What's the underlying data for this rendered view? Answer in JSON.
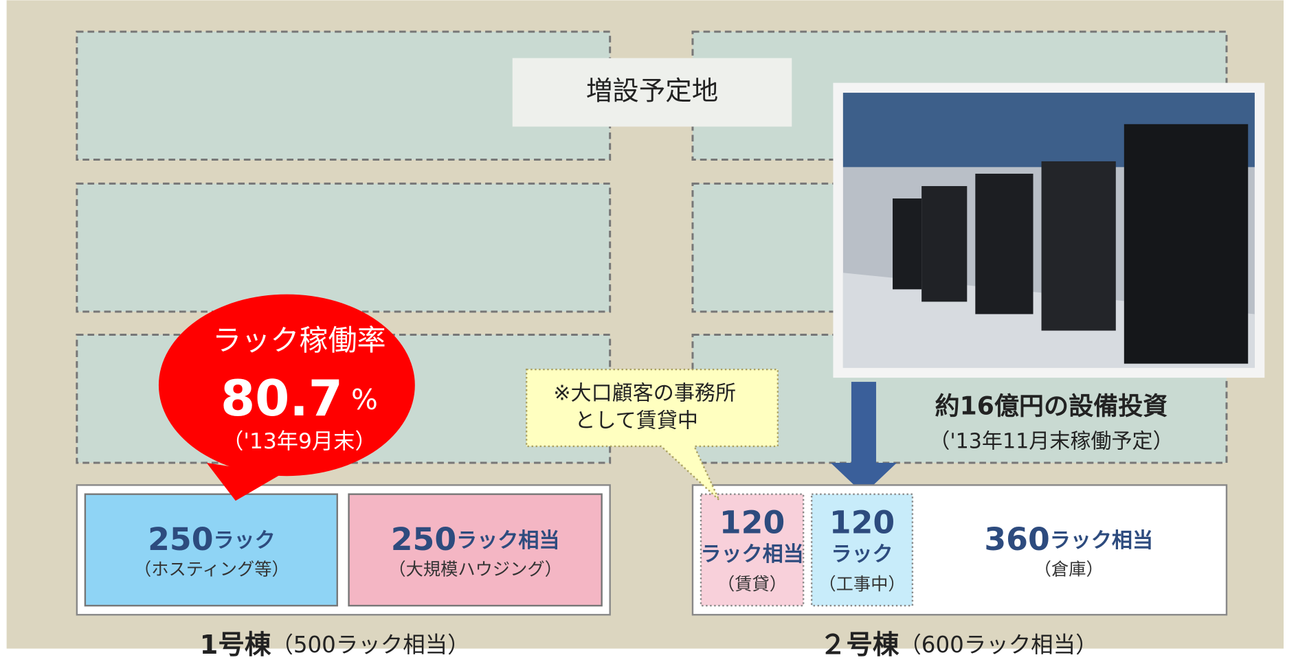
{
  "expansion_label": "増設予定地",
  "occupancy": {
    "title": "ラック稼働率",
    "value": "80.7",
    "unit": "%",
    "date": "（'13年9月末）"
  },
  "note": [
    "※大口顧客の事務所",
    "として賃貸中"
  ],
  "investment": {
    "title": "約16億円の設備投資",
    "subtitle": "（'13年11月末稼働予定）"
  },
  "buildings": [
    {
      "name": "1号棟",
      "capacity": "（500ラック相当）",
      "units": [
        {
          "count": "250",
          "unit": "ラック",
          "use": "（ホスティング等）"
        },
        {
          "count": "250",
          "unit": "ラック相当",
          "use": "（大規模ハウジング）"
        }
      ]
    },
    {
      "name": "２号棟",
      "capacity": "（600ラック相当）",
      "units": [
        {
          "count": "120",
          "unit": "ラック相当",
          "use": "（賃貸）"
        },
        {
          "count": "120",
          "unit": "ラック",
          "use": "（工事中）"
        },
        {
          "count": "360",
          "unit": "ラック相当",
          "use": "（倉庫）"
        }
      ]
    }
  ]
}
